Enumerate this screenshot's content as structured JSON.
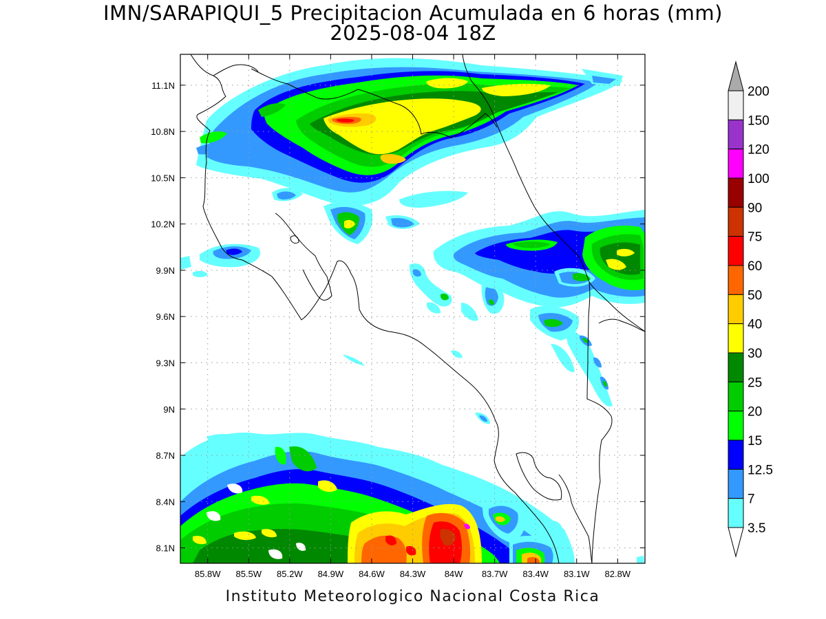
{
  "title": {
    "line1": "IMN/SARAPIQUI_5 Precipitacion Acumulada en 6 horas (mm)",
    "line2": "2025-08-04 18Z"
  },
  "credit": "Instituto Meteorologico Nacional Costa Rica",
  "map": {
    "lon_range": [
      -86.0,
      -82.6
    ],
    "lat_range": [
      8.0,
      11.3
    ],
    "lon_ticks": [
      {
        "value": -85.8,
        "label": "85.8W"
      },
      {
        "value": -85.5,
        "label": "85.5W"
      },
      {
        "value": -85.2,
        "label": "85.2W"
      },
      {
        "value": -84.9,
        "label": "84.9W"
      },
      {
        "value": -84.6,
        "label": "84.6W"
      },
      {
        "value": -84.3,
        "label": "84.3W"
      },
      {
        "value": -84.0,
        "label": "84W"
      },
      {
        "value": -83.7,
        "label": "83.7W"
      },
      {
        "value": -83.4,
        "label": "83.4W"
      },
      {
        "value": -83.1,
        "label": "83.1W"
      },
      {
        "value": -82.8,
        "label": "82.8W"
      }
    ],
    "lat_ticks": [
      {
        "value": 11.1,
        "label": "11.1N"
      },
      {
        "value": 10.8,
        "label": "10.8N"
      },
      {
        "value": 10.5,
        "label": "10.5N"
      },
      {
        "value": 10.2,
        "label": "10.2N"
      },
      {
        "value": 9.9,
        "label": "9.9N"
      },
      {
        "value": 9.6,
        "label": "9.6N"
      },
      {
        "value": 9.3,
        "label": "9.3N"
      },
      {
        "value": 9.0,
        "label": "9N"
      },
      {
        "value": 8.7,
        "label": "8.7N"
      },
      {
        "value": 8.4,
        "label": "8.4N"
      },
      {
        "value": 8.1,
        "label": "8.1N"
      }
    ],
    "grid": true
  },
  "colorbar": {
    "levels": [
      {
        "label": "3.5",
        "color": "#66ffff"
      },
      {
        "label": "7",
        "color": "#3399ff"
      },
      {
        "label": "12.5",
        "color": "#0000ff"
      },
      {
        "label": "15",
        "color": "#00ff00"
      },
      {
        "label": "20",
        "color": "#00cc00"
      },
      {
        "label": "25",
        "color": "#008800"
      },
      {
        "label": "30",
        "color": "#ffff00"
      },
      {
        "label": "40",
        "color": "#ffcc00"
      },
      {
        "label": "50",
        "color": "#ff6600"
      },
      {
        "label": "60",
        "color": "#ff0000"
      },
      {
        "label": "75",
        "color": "#cc3300"
      },
      {
        "label": "90",
        "color": "#990000"
      },
      {
        "label": "100",
        "color": "#ff00ff"
      },
      {
        "label": "120",
        "color": "#9933cc"
      },
      {
        "label": "150",
        "color": "#f0f0f0"
      },
      {
        "label": "200",
        "color": "#aaaaaa"
      }
    ]
  }
}
